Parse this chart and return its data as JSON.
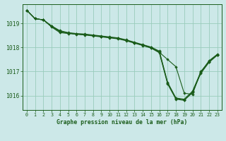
{
  "bg_color": "#cce8e8",
  "grid_color": "#99ccbb",
  "line_color": "#1a5c1a",
  "marker_color": "#1a5c1a",
  "title": "Graphe pression niveau de la mer (hPa)",
  "xlim": [
    -0.5,
    23.5
  ],
  "ylim": [
    1015.4,
    1019.8
  ],
  "yticks": [
    1016,
    1017,
    1018,
    1019
  ],
  "xticks": [
    0,
    1,
    2,
    3,
    4,
    5,
    6,
    7,
    8,
    9,
    10,
    11,
    12,
    13,
    14,
    15,
    16,
    17,
    18,
    19,
    20,
    21,
    22,
    23
  ],
  "series": [
    [
      1019.55,
      1019.2,
      1019.15,
      1018.85,
      1018.62,
      1018.58,
      1018.55,
      1018.52,
      1018.48,
      1018.44,
      1018.4,
      1018.36,
      1018.28,
      1018.18,
      1018.08,
      1017.98,
      1017.8,
      1017.5,
      1017.2,
      1016.1,
      1016.05,
      1017.0,
      1017.4,
      1017.7
    ],
    [
      1019.55,
      1019.2,
      1019.15,
      1018.88,
      1018.68,
      1018.6,
      1018.56,
      1018.54,
      1018.5,
      1018.46,
      1018.42,
      1018.38,
      1018.3,
      1018.2,
      1018.1,
      1018.0,
      1017.82,
      1016.52,
      1015.88,
      1015.82,
      1016.15,
      1016.95,
      1017.42,
      1017.7
    ],
    [
      1019.55,
      1019.2,
      1019.15,
      1018.88,
      1018.65,
      1018.6,
      1018.56,
      1018.53,
      1018.5,
      1018.46,
      1018.42,
      1018.38,
      1018.3,
      1018.2,
      1018.1,
      1017.98,
      1017.78,
      1016.48,
      1015.85,
      1015.8,
      1016.12,
      1016.92,
      1017.38,
      1017.68
    ],
    [
      1019.55,
      1019.2,
      1019.15,
      1018.9,
      1018.7,
      1018.62,
      1018.58,
      1018.56,
      1018.52,
      1018.48,
      1018.44,
      1018.4,
      1018.32,
      1018.22,
      1018.12,
      1018.02,
      1017.85,
      1016.55,
      1015.9,
      1015.85,
      1016.18,
      1016.98,
      1017.45,
      1017.72
    ]
  ]
}
